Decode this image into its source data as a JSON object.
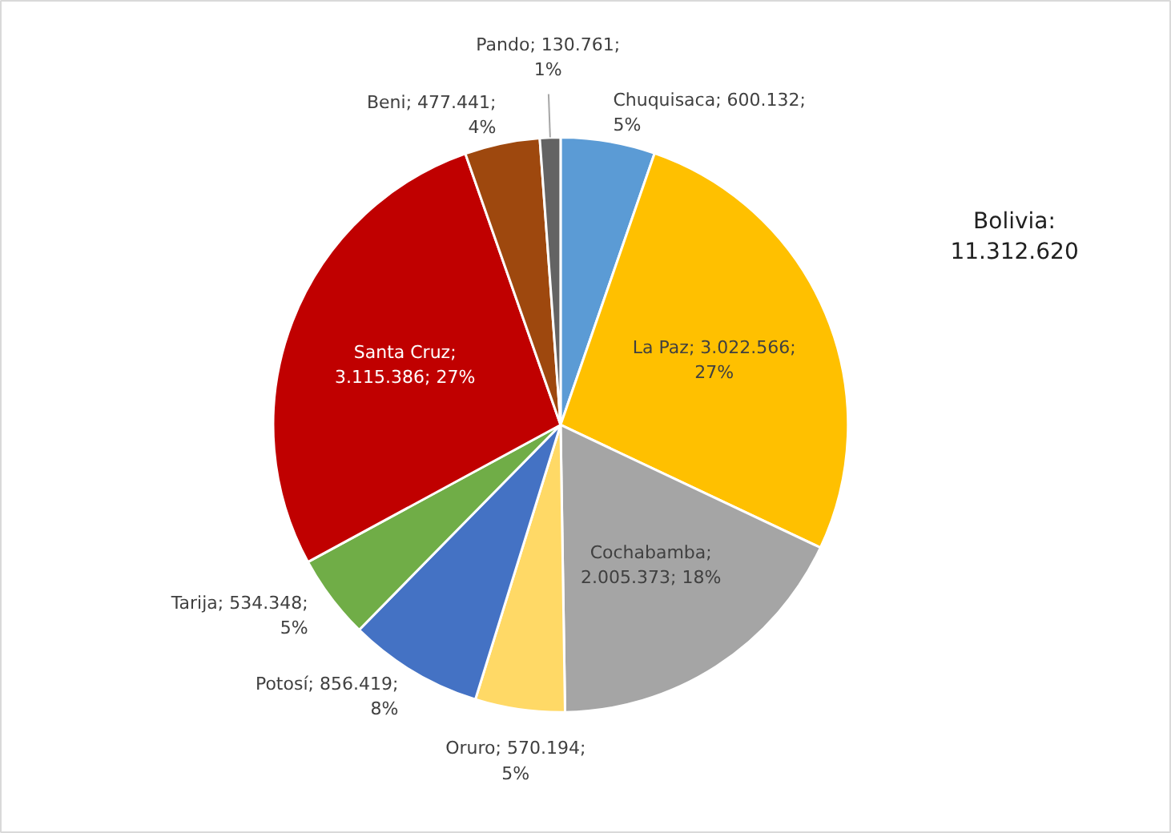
{
  "chart_data": {
    "type": "pie",
    "categories": [
      "Chuquisaca",
      "La Paz",
      "Cochabamba",
      "Oruro",
      "Potosí",
      "Tarija",
      "Santa Cruz",
      "Beni",
      "Pando"
    ],
    "values": [
      600132,
      3022566,
      2005373,
      570194,
      856419,
      534348,
      3115386,
      477441,
      130761
    ],
    "value_labels": [
      "; 600.132; 5%",
      "; 3.022.566; 27%",
      "; 2.005.373; 18%",
      "; 570.194; 5%",
      "; 856.419; 8%",
      "; 534.348; 5%",
      "; 3.115.386; 27%",
      "; 477.441; 4%",
      "; 130.761; 1%"
    ],
    "colors": [
      "#5b9bd5",
      "#ffc000",
      "#a5a5a5",
      "#ffd966",
      "#4472c4",
      "#70ad47",
      "#c00000",
      "#9e480e",
      "#636363"
    ],
    "annotations": [
      "Bolivia:\n11.312.620"
    ]
  }
}
